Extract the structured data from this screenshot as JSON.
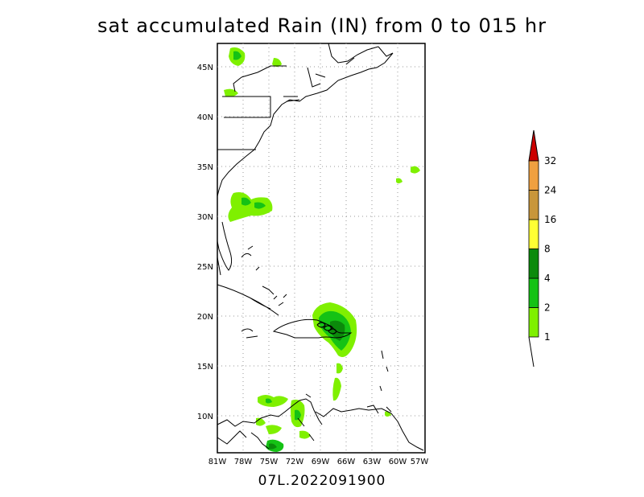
{
  "title": "sat accumulated Rain (IN) from 0 to 015 hr",
  "footer": "07L.2022091900",
  "map": {
    "lat_labels": [
      "45N",
      "40N",
      "35N",
      "30N",
      "25N",
      "20N",
      "15N",
      "10N"
    ],
    "lon_labels": [
      "81W",
      "78W",
      "75W",
      "72W",
      "69W",
      "66W",
      "63W",
      "60W",
      "57W"
    ]
  },
  "colorbar": {
    "levels": [
      {
        "label": "1",
        "color": "#7ff000"
      },
      {
        "label": "2",
        "color": "#15c215"
      },
      {
        "label": "4",
        "color": "#0b8a0b"
      },
      {
        "label": "8",
        "color": "#ffff33"
      },
      {
        "label": "16",
        "color": "#c8963a"
      },
      {
        "label": "24",
        "color": "#f0a040"
      },
      {
        "label": "32",
        "color": "#cc0000"
      }
    ]
  }
}
